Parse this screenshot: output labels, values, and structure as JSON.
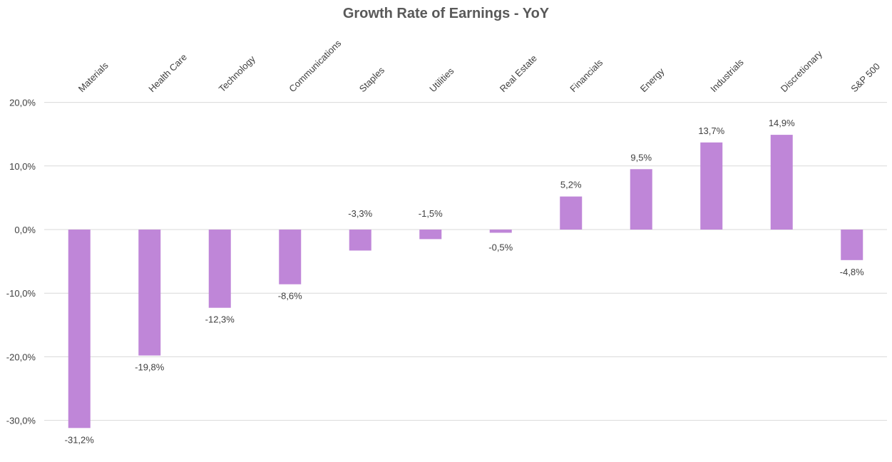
{
  "chart_data": {
    "type": "bar",
    "title": "Growth Rate of Earnings - YoY",
    "xlabel": "",
    "ylabel": "",
    "categories": [
      "Materials",
      "Health Care",
      "Technology",
      "Communications",
      "Staples",
      "Utilities",
      "Real Estate",
      "Financials",
      "Energy",
      "Industrials",
      "Discretionary",
      "S&P 500"
    ],
    "values": [
      -31.2,
      -19.8,
      -12.3,
      -8.6,
      -3.3,
      -1.5,
      -0.5,
      5.2,
      9.5,
      13.7,
      14.9,
      -4.8
    ],
    "value_labels": [
      "-31,2%",
      "-19,8%",
      "-12,3%",
      "-8,6%",
      "-3,3%",
      "-1,5%",
      "-0,5%",
      "5,2%",
      "9,5%",
      "13,7%",
      "14,9%",
      "-4,8%"
    ],
    "ylim": [
      -30,
      20
    ],
    "yticks": [
      20,
      10,
      0,
      -10,
      -20,
      -30
    ],
    "ytick_labels": [
      "20,0%",
      "10,0%",
      "0,0%",
      "-10,0%",
      "-20,0%",
      "-30,0%"
    ],
    "grid": true,
    "category_axis_position": "top",
    "bar_color": "#bf86d8"
  }
}
